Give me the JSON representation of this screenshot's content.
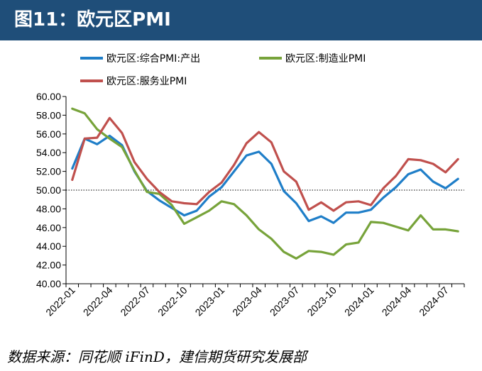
{
  "header": {
    "title": "图11：欧元区PMI"
  },
  "source": "数据来源：同花顺 iFinD，建信期货研究发展部",
  "colors": {
    "header_bg": "#1f4e79",
    "composite": "#1f7ec8",
    "manufacturing": "#77a33a",
    "services": "#c0504d"
  },
  "chart_data": {
    "type": "line",
    "title": "",
    "xlabel": "",
    "ylabel": "",
    "ylim": [
      40,
      60
    ],
    "y_ticks": [
      "40.00",
      "42.00",
      "44.00",
      "46.00",
      "48.00",
      "50.00",
      "52.00",
      "54.00",
      "56.00",
      "58.00",
      "60.00"
    ],
    "x_ticks": [
      "2022-01",
      "2022-04",
      "2022-07",
      "2022-10",
      "2023-01",
      "2023-04",
      "2023-07",
      "2023-10",
      "2024-01",
      "2024-04",
      "2024-07"
    ],
    "reference_line": 50,
    "legend_position": "top",
    "x": [
      "2022-01",
      "2022-02",
      "2022-03",
      "2022-04",
      "2022-05",
      "2022-06",
      "2022-07",
      "2022-08",
      "2022-09",
      "2022-10",
      "2022-11",
      "2022-12",
      "2023-01",
      "2023-02",
      "2023-03",
      "2023-04",
      "2023-05",
      "2023-06",
      "2023-07",
      "2023-08",
      "2023-09",
      "2023-10",
      "2023-11",
      "2023-12",
      "2024-01",
      "2024-02",
      "2024-03",
      "2024-04",
      "2024-05",
      "2024-06",
      "2024-07",
      "2024-08"
    ],
    "series": [
      {
        "name": "欧元区:综合PMI:产出",
        "color": "#1f7ec8",
        "values": [
          52.3,
          55.5,
          54.9,
          55.8,
          54.8,
          52.0,
          49.9,
          48.9,
          48.1,
          47.3,
          47.8,
          49.3,
          50.3,
          52.0,
          53.7,
          54.1,
          52.8,
          49.9,
          48.6,
          46.7,
          47.2,
          46.5,
          47.6,
          47.6,
          47.9,
          49.2,
          50.3,
          51.7,
          52.2,
          50.9,
          50.2,
          51.2
        ]
      },
      {
        "name": "欧元区:制造业PMI",
        "color": "#77a33a",
        "values": [
          58.7,
          58.2,
          56.5,
          55.5,
          54.6,
          52.1,
          49.8,
          49.6,
          48.4,
          46.4,
          47.1,
          47.8,
          48.8,
          48.5,
          47.3,
          45.8,
          44.8,
          43.4,
          42.7,
          43.5,
          43.4,
          43.1,
          44.2,
          44.4,
          46.6,
          46.5,
          46.1,
          45.7,
          47.3,
          45.8,
          45.8,
          45.6
        ]
      },
      {
        "name": "欧元区:服务业PMI",
        "color": "#c0504d",
        "values": [
          51.1,
          55.5,
          55.6,
          57.7,
          56.1,
          53.0,
          51.2,
          49.8,
          48.8,
          48.6,
          48.5,
          49.8,
          50.8,
          52.7,
          55.0,
          56.2,
          55.1,
          52.0,
          50.9,
          47.9,
          48.7,
          47.8,
          48.7,
          48.8,
          48.4,
          50.2,
          51.5,
          53.3,
          53.2,
          52.8,
          51.9,
          53.3
        ]
      }
    ]
  }
}
